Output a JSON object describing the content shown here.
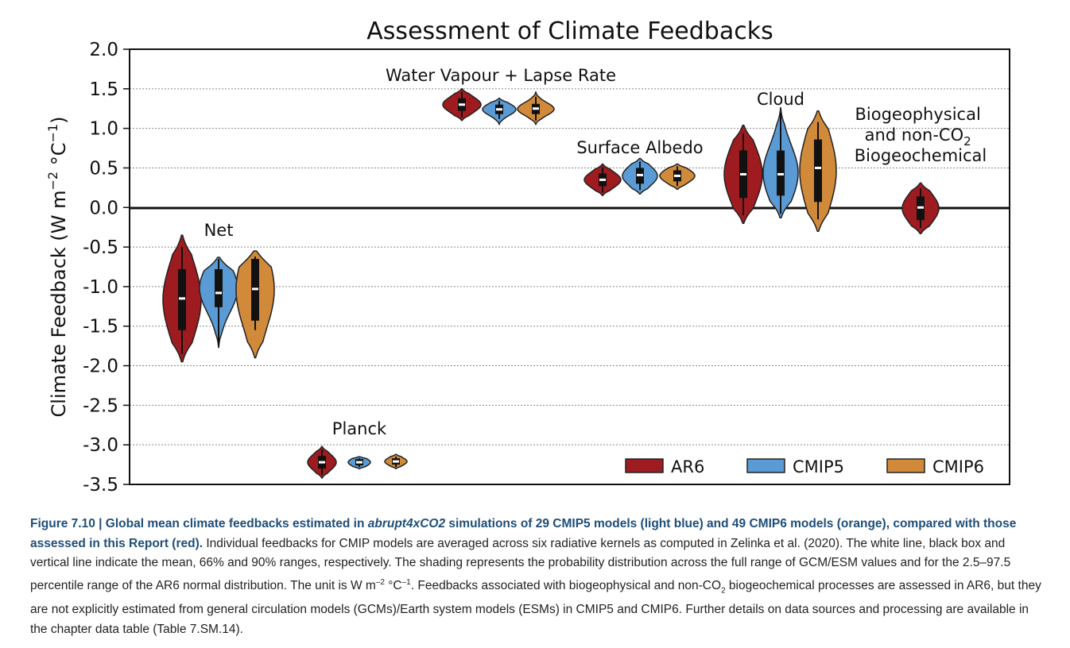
{
  "chart_data": {
    "type": "violin",
    "title": "Assessment of Climate Feedbacks",
    "ylabel": "Climate Feedback (W m^-2 °C^-1)",
    "ylim": [
      -3.5,
      2.0
    ],
    "yticks": [
      "2.0",
      "1.5",
      "1.0",
      "0.5",
      "0.0",
      "-0.5",
      "-1.0",
      "-1.5",
      "-2.0",
      "-2.5",
      "-3.0",
      "-3.5"
    ],
    "grid": true,
    "legend": "bottom-right",
    "series": [
      {
        "name": "AR6",
        "color": "#9e1b20"
      },
      {
        "name": "CMIP5",
        "color": "#5b9bd5"
      },
      {
        "name": "CMIP6",
        "color": "#d08a3a"
      }
    ],
    "groups": [
      {
        "label": "Net",
        "violins": [
          {
            "series": "AR6",
            "min": -1.95,
            "max": -0.35,
            "mean": -1.15,
            "box": [
              -1.55,
              -0.78
            ],
            "whisker": [
              -1.85,
              -0.5
            ]
          },
          {
            "series": "CMIP5",
            "min": -1.77,
            "max": -0.63,
            "mean": -1.08,
            "box": [
              -1.26,
              -0.78
            ],
            "whisker": [
              -1.75,
              -0.65
            ]
          },
          {
            "series": "CMIP6",
            "min": -1.9,
            "max": -0.55,
            "mean": -1.03,
            "box": [
              -1.43,
              -0.65
            ],
            "whisker": [
              -1.55,
              -0.62
            ]
          }
        ]
      },
      {
        "label": "Planck",
        "violins": [
          {
            "series": "AR6",
            "min": -3.42,
            "max": -3.02,
            "mean": -3.22,
            "box": [
              -3.3,
              -3.14
            ],
            "whisker": [
              -3.38,
              -3.06
            ]
          },
          {
            "series": "CMIP5",
            "min": -3.3,
            "max": -3.15,
            "mean": -3.22,
            "box": [
              -3.26,
              -3.18
            ],
            "whisker": [
              -3.28,
              -3.17
            ]
          },
          {
            "series": "CMIP6",
            "min": -3.3,
            "max": -3.12,
            "mean": -3.21,
            "box": [
              -3.25,
              -3.17
            ],
            "whisker": [
              -3.28,
              -3.15
            ]
          }
        ]
      },
      {
        "label": "Water Vapour + Lapse Rate",
        "violins": [
          {
            "series": "AR6",
            "min": 1.1,
            "max": 1.5,
            "mean": 1.3,
            "box": [
              1.22,
              1.38
            ],
            "whisker": [
              1.14,
              1.46
            ]
          },
          {
            "series": "CMIP5",
            "min": 1.05,
            "max": 1.38,
            "mean": 1.24,
            "box": [
              1.18,
              1.3
            ],
            "whisker": [
              1.12,
              1.35
            ]
          },
          {
            "series": "CMIP6",
            "min": 1.05,
            "max": 1.46,
            "mean": 1.25,
            "box": [
              1.18,
              1.31
            ],
            "whisker": [
              1.1,
              1.4
            ]
          }
        ]
      },
      {
        "label": "Surface Albedo",
        "violins": [
          {
            "series": "AR6",
            "min": 0.15,
            "max": 0.55,
            "mean": 0.35,
            "box": [
              0.27,
              0.43
            ],
            "whisker": [
              0.19,
              0.51
            ]
          },
          {
            "series": "CMIP5",
            "min": 0.17,
            "max": 0.62,
            "mean": 0.41,
            "box": [
              0.3,
              0.5
            ],
            "whisker": [
              0.22,
              0.58
            ]
          },
          {
            "series": "CMIP6",
            "min": 0.23,
            "max": 0.55,
            "mean": 0.4,
            "box": [
              0.33,
              0.47
            ],
            "whisker": [
              0.27,
              0.52
            ]
          }
        ]
      },
      {
        "label": "Cloud",
        "violins": [
          {
            "series": "AR6",
            "min": -0.2,
            "max": 1.04,
            "mean": 0.42,
            "box": [
              0.12,
              0.72
            ],
            "whisker": [
              -0.1,
              0.94
            ]
          },
          {
            "series": "CMIP5",
            "min": -0.13,
            "max": 1.26,
            "mean": 0.42,
            "box": [
              0.15,
              0.72
            ],
            "whisker": [
              -0.08,
              1.2
            ]
          },
          {
            "series": "CMIP6",
            "min": -0.3,
            "max": 1.22,
            "mean": 0.5,
            "box": [
              0.07,
              0.86
            ],
            "whisker": [
              -0.15,
              1.08
            ]
          }
        ]
      },
      {
        "label": "Biogeophysical and non-CO2 Biogeochemical",
        "violins": [
          {
            "series": "AR6",
            "min": -0.33,
            "max": 0.31,
            "mean": 0.0,
            "box": [
              -0.16,
              0.14
            ],
            "whisker": [
              -0.26,
              0.24
            ]
          }
        ]
      }
    ]
  },
  "caption": {
    "figure_label": "Figure 7.10 | ",
    "bold_1": "Global mean climate feedbacks estimated in ",
    "bold_italic": "abrupt4xCO2",
    "bold_2": " simulations of 29 CMIP5 models (light blue) and 49 CMIP6 models (orange), compared with those assessed in this Report (red).",
    "body_1": " Individual feedbacks for CMIP models are averaged across six radiative kernels as computed in Zelinka et al. (2020). The white line, black box and vertical line indicate the mean, 66% and 90% ranges, respectively. The shading represents the probability distribution across the full range of GCM/ESM values and for the 2.5–97.5 percentile range of the AR6 normal distribution. The unit is W m",
    "sup_1": "–2",
    "body_2": " °C",
    "sup_2": "–1",
    "body_3": ". Feedbacks associated with biogeophysical and non-CO",
    "sub_1": "2",
    "body_4": " biogeochemical processes are assessed in AR6, but they are not explicitly estimated from general circulation models (GCMs)/Earth system models (ESMs) in CMIP5 and CMIP6. Further details on data sources and processing are available in the chapter data table (Table 7.SM.14)."
  }
}
